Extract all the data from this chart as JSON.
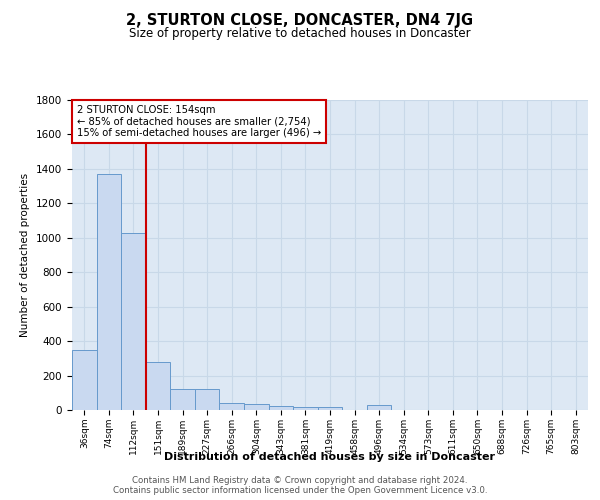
{
  "title": "2, STURTON CLOSE, DONCASTER, DN4 7JG",
  "subtitle": "Size of property relative to detached houses in Doncaster",
  "xlabel": "Distribution of detached houses by size in Doncaster",
  "ylabel": "Number of detached properties",
  "bin_labels": [
    "36sqm",
    "74sqm",
    "112sqm",
    "151sqm",
    "189sqm",
    "227sqm",
    "266sqm",
    "304sqm",
    "343sqm",
    "381sqm",
    "419sqm",
    "458sqm",
    "496sqm",
    "534sqm",
    "573sqm",
    "611sqm",
    "650sqm",
    "688sqm",
    "726sqm",
    "765sqm",
    "803sqm"
  ],
  "bar_values": [
    350,
    1370,
    1030,
    280,
    120,
    120,
    40,
    35,
    25,
    20,
    15,
    0,
    30,
    0,
    0,
    0,
    0,
    0,
    0,
    0,
    0
  ],
  "bar_color": "#c9d9f0",
  "bar_edge_color": "#6699cc",
  "highlight_color": "#cc0000",
  "annotation_text": "2 STURTON CLOSE: 154sqm\n← 85% of detached houses are smaller (2,754)\n15% of semi-detached houses are larger (496) →",
  "annotation_box_color": "#ffffff",
  "annotation_box_edge_color": "#cc0000",
  "vline_x_index": 3,
  "ylim": [
    0,
    1800
  ],
  "yticks": [
    0,
    200,
    400,
    600,
    800,
    1000,
    1200,
    1400,
    1600,
    1800
  ],
  "grid_color": "#c8d8e8",
  "bg_color": "#dde8f4",
  "footer_line1": "Contains HM Land Registry data © Crown copyright and database right 2024.",
  "footer_line2": "Contains public sector information licensed under the Open Government Licence v3.0."
}
